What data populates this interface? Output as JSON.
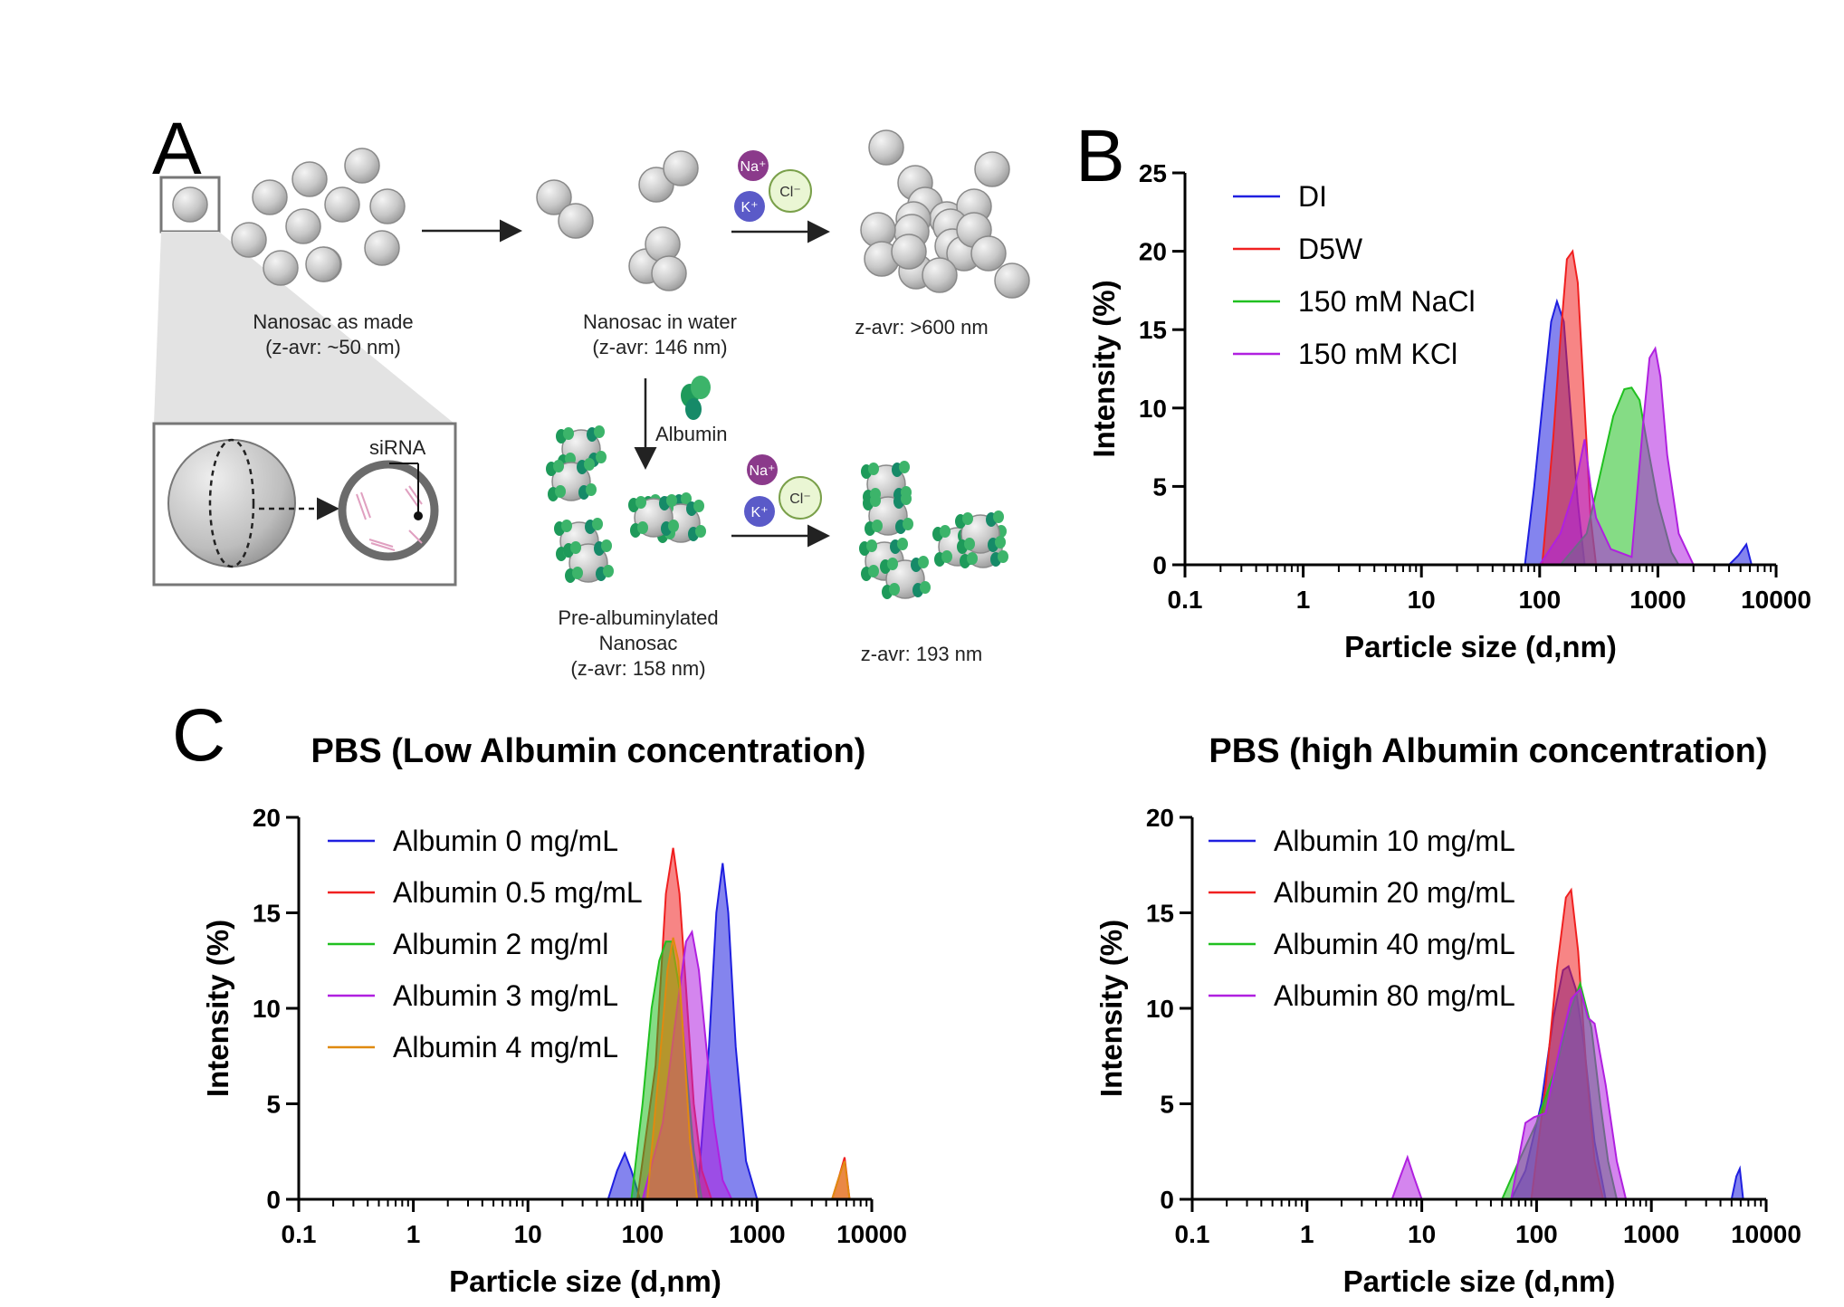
{
  "panel_labels": [
    "A",
    "B",
    "C"
  ],
  "diagram": {
    "nanosac_made_label": [
      "Nanosac as made",
      "(z-avr: ~50 nm)"
    ],
    "nanosac_water_label": [
      "Nanosac in water",
      "(z-avr: 146 nm)"
    ],
    "salt_aggregate_label": "z-avr: >600 nm",
    "albumin_label": "Albumin",
    "prealbuminylated_label": [
      "Pre-albuminylated",
      "Nanosac",
      "(z-avr: 158 nm)"
    ],
    "stabilized_label": "z-avr: 193 nm",
    "sirna_label": "siRNA",
    "ions": {
      "na": "Na⁺",
      "k": "K⁺",
      "cl": "Cl⁻"
    }
  },
  "chart_data": [
    {
      "id": "B",
      "type": "area",
      "title": "",
      "xlabel": "Particle size (d,nm)",
      "ylabel": "Intensity (%)",
      "xscale": "log",
      "xlim": [
        0.1,
        10000
      ],
      "ylim": [
        0,
        25
      ],
      "xticks": [
        "0.1",
        "1",
        "10",
        "100",
        "1000",
        "10000"
      ],
      "yticks": [
        "0",
        "5",
        "10",
        "15",
        "20",
        "25"
      ],
      "legend": "top-left",
      "series": [
        {
          "name": "DI",
          "color": "#1f1fe0",
          "x": [
            0.4,
            75,
            90,
            110,
            125,
            140,
            160,
            180,
            210,
            240,
            4000,
            4800,
            5600,
            6200
          ],
          "y": [
            0,
            0,
            5,
            11.5,
            15.5,
            16.8,
            15.5,
            10.5,
            4,
            0,
            0,
            0.6,
            1.3,
            0
          ]
        },
        {
          "name": "D5W",
          "color": "#f02020",
          "x": [
            0.4,
            105,
            130,
            150,
            170,
            190,
            210,
            240,
            270,
            300
          ],
          "y": [
            0,
            0,
            8,
            14.5,
            19.5,
            20,
            18,
            10,
            3,
            0
          ]
        },
        {
          "name": "150 mM NaCl",
          "color": "#20c020",
          "x": [
            0.4,
            150,
            250,
            330,
            420,
            520,
            600,
            700,
            800,
            1000,
            1300,
            1500
          ],
          "y": [
            0,
            0,
            2,
            6,
            9.5,
            11.2,
            11.3,
            10.5,
            8,
            4,
            0.8,
            0
          ]
        },
        {
          "name": "150 mM KCl",
          "color": "#b020e0",
          "x": [
            0.4,
            100,
            150,
            200,
            240,
            270,
            300,
            400,
            600,
            750,
            850,
            950,
            1050,
            1200,
            1500,
            2000
          ],
          "y": [
            0,
            0,
            2,
            5,
            8,
            5,
            3,
            1,
            0.5,
            9,
            13.2,
            13.8,
            12,
            7,
            2,
            0
          ]
        }
      ]
    },
    {
      "id": "C-left",
      "type": "area",
      "title": "PBS (Low Albumin concentration)",
      "xlabel": "Particle size (d,nm)",
      "ylabel": "Intensity (%)",
      "xscale": "log",
      "xlim": [
        0.1,
        10000
      ],
      "ylim": [
        0,
        20
      ],
      "xticks": [
        "0.1",
        "1",
        "10",
        "100",
        "1000",
        "10000"
      ],
      "yticks": [
        "0",
        "5",
        "10",
        "15",
        "20"
      ],
      "legend": "top-left",
      "series": [
        {
          "name": "Albumin 0 mg/mL",
          "color": "#1f1fe0",
          "x": [
            0.4,
            50,
            60,
            70,
            80,
            95,
            300,
            380,
            440,
            500,
            560,
            650,
            800,
            1000
          ],
          "y": [
            0,
            0,
            1.5,
            2.4,
            1.5,
            0,
            0,
            8,
            15,
            17.6,
            15,
            8,
            2,
            0
          ]
        },
        {
          "name": "Albumin 0.5 mg/mL",
          "color": "#f02020",
          "x": [
            0.4,
            90,
            130,
            160,
            185,
            210,
            240,
            280,
            330,
            400,
            4500,
            5200,
            5800,
            6400
          ],
          "y": [
            0,
            0,
            7,
            16,
            18.4,
            16,
            11,
            5,
            1.5,
            0,
            0,
            1.2,
            2.2,
            0
          ]
        },
        {
          "name": "Albumin 2 mg/ml",
          "color": "#20c020",
          "x": [
            0.4,
            80,
            100,
            120,
            140,
            160,
            180,
            210,
            240,
            280,
            330
          ],
          "y": [
            0,
            0,
            5,
            10,
            12.5,
            13.5,
            13.5,
            11,
            7,
            2.5,
            0
          ]
        },
        {
          "name": "Albumin 3 mg/mL",
          "color": "#b020e0",
          "x": [
            0.4,
            100,
            150,
            200,
            240,
            270,
            310,
            360,
            420,
            500,
            600
          ],
          "y": [
            0,
            0,
            4,
            10,
            13.5,
            14,
            12,
            8,
            4,
            1,
            0
          ]
        },
        {
          "name": "Albumin 4 mg/mL",
          "color": "#e08a10",
          "x": [
            0.4,
            110,
            140,
            165,
            185,
            205,
            230,
            260,
            300,
            4500,
            5200,
            5800,
            6400
          ],
          "y": [
            0,
            0,
            7,
            12,
            13.7,
            12.5,
            8,
            3,
            0,
            0,
            1.2,
            2,
            0
          ]
        }
      ]
    },
    {
      "id": "C-right",
      "type": "area",
      "title": "PBS (high Albumin concentration)",
      "xlabel": "Particle size (d,nm)",
      "ylabel": "Intensity (%)",
      "xscale": "log",
      "xlim": [
        0.1,
        10000
      ],
      "ylim": [
        0,
        20
      ],
      "xticks": [
        "0.1",
        "1",
        "10",
        "100",
        "1000",
        "10000"
      ],
      "yticks": [
        "0",
        "5",
        "10",
        "15",
        "20"
      ],
      "legend": "top-left",
      "series": [
        {
          "name": "Albumin 10 mg/mL",
          "color": "#1f1fe0",
          "x": [
            0.4,
            60,
            80,
            110,
            140,
            170,
            190,
            220,
            260,
            320,
            400,
            5000,
            5500,
            5900,
            6300
          ],
          "y": [
            0,
            0,
            1.5,
            5,
            9.5,
            12,
            12.2,
            11,
            8,
            3,
            0,
            0,
            1.2,
            1.6,
            0
          ]
        },
        {
          "name": "Albumin 20 mg/mL",
          "color": "#f02020",
          "x": [
            0.4,
            90,
            120,
            150,
            180,
            200,
            230,
            270,
            320,
            380
          ],
          "y": [
            0,
            0,
            6,
            12,
            15.8,
            16.2,
            13,
            7,
            2,
            0
          ]
        },
        {
          "name": "Albumin 40 mg/mL",
          "color": "#20c020",
          "x": [
            0.4,
            50,
            70,
            100,
            150,
            200,
            240,
            300,
            360,
            420,
            500
          ],
          "y": [
            0,
            0,
            2,
            4,
            7,
            10,
            11.3,
            9,
            5,
            2,
            0
          ]
        },
        {
          "name": "Albumin 80 mg/mL",
          "color": "#b020e0",
          "x": [
            0.4,
            5.5,
            6.5,
            7.5,
            8.5,
            10,
            60,
            80,
            95,
            120,
            160,
            200,
            240,
            280,
            320,
            400,
            500,
            600
          ],
          "y": [
            0,
            0,
            1.2,
            2.2,
            1.2,
            0,
            0,
            4,
            4.3,
            4.5,
            8,
            10.5,
            11,
            9.5,
            9.2,
            6,
            2,
            0
          ]
        }
      ]
    }
  ]
}
